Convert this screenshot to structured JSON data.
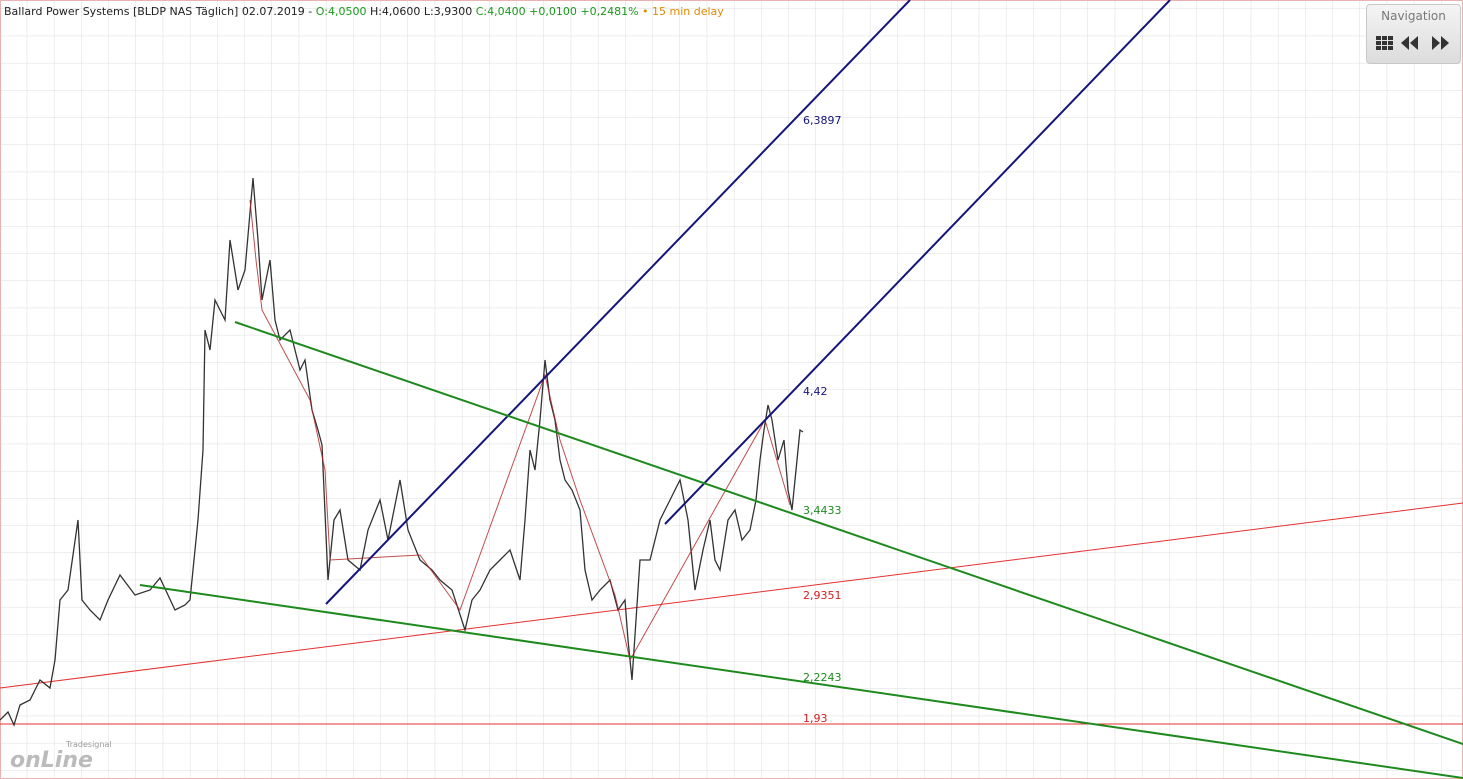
{
  "header": {
    "instrument": "Ballard Power Systems [BLDP NAS Täglich] 02.07.2019 -",
    "open": "O:4,0500",
    "high": "H:4,0600",
    "low": "L:3,9300",
    "close": "C:4,0400",
    "change": "+0,0100",
    "change_pct": "+0,2481%",
    "delay": "• 15 min delay"
  },
  "navigation": {
    "title": "Navigation"
  },
  "line_labels": [
    "6,3897",
    "4,42",
    "3,4433",
    "2,9351",
    "2,2243",
    "1,93"
  ],
  "logo": {
    "top": "Tradesignal",
    "main": "onLine"
  }
}
